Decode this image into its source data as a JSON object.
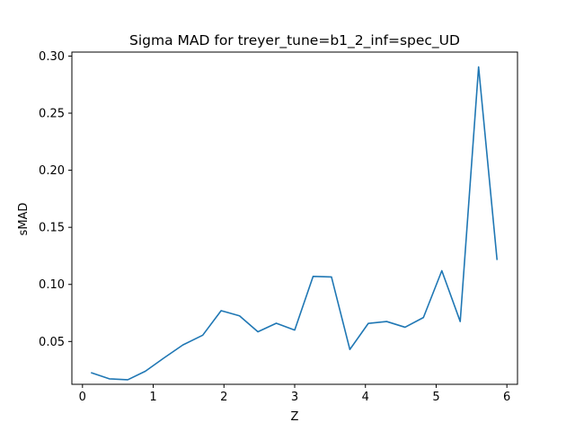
{
  "chart_data": {
    "type": "line",
    "title": "Sigma MAD for treyer_tune=b1_2_inf=spec_UD",
    "xlabel": "Z",
    "ylabel": "sMAD",
    "xlim": [
      -0.15,
      6.15
    ],
    "ylim": [
      0.0125,
      0.3035
    ],
    "x_ticks": [
      0,
      1,
      2,
      3,
      4,
      5,
      6
    ],
    "x_tick_labels": [
      "0",
      "1",
      "2",
      "3",
      "4",
      "5",
      "6"
    ],
    "y_ticks": [
      0.05,
      0.1,
      0.15,
      0.2,
      0.25,
      0.3
    ],
    "y_tick_labels": [
      "0.05",
      "0.10",
      "0.15",
      "0.20",
      "0.25",
      "0.30"
    ],
    "grid": false,
    "legend": false,
    "line_color": "#1f77b4",
    "series": [
      {
        "x": [
          0.13,
          0.38,
          0.64,
          0.89,
          1.15,
          1.42,
          1.7,
          1.96,
          2.22,
          2.48,
          2.74,
          3.0,
          3.26,
          3.52,
          3.78,
          4.04,
          4.3,
          4.56,
          4.82,
          5.08,
          5.34,
          5.6,
          5.86
        ],
        "values": [
          0.0225,
          0.0173,
          0.0165,
          0.024,
          0.0355,
          0.047,
          0.0555,
          0.077,
          0.0725,
          0.0585,
          0.066,
          0.06,
          0.107,
          0.1065,
          0.043,
          0.0658,
          0.0675,
          0.0625,
          0.071,
          0.112,
          0.0675,
          0.2905,
          0.122
        ]
      }
    ]
  }
}
